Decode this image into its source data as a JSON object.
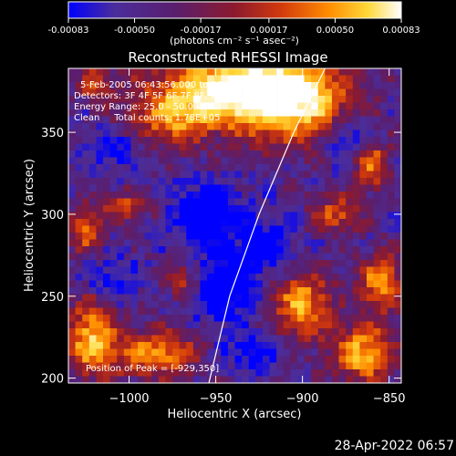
{
  "colorbar": {
    "ticks": [
      "-0.00083",
      "-0.00050",
      "-0.00017",
      "0.00017",
      "0.00050",
      "0.00083"
    ],
    "unit_label": "(photons cm⁻² s⁻¹ asec⁻²)",
    "range": [
      -0.00083,
      0.00083
    ]
  },
  "plot": {
    "title": "Reconstructed RHESSI Image",
    "info_lines": [
      "5-Feb-2005 06:43:56.000 to 06:45:08.000",
      "Detectors: 3F 4F 5F 6F 7F 8F, Att 0",
      "Energy Range: 25.0 - 50.0 keV",
      "Clean     Total counts: 1.78E+05"
    ],
    "peak_text": "Position of Peak = [-929,350]"
  },
  "footer": {
    "timestamp": "28-Apr-2022 06:57"
  },
  "chart_data": {
    "type": "heatmap",
    "title": "Reconstructed RHESSI Image",
    "xlabel": "Heliocentric X (arcsec)",
    "ylabel": "Heliocentric Y (arcsec)",
    "xlim": [
      -1035,
      -843
    ],
    "ylim": [
      197,
      389
    ],
    "x_ticks": [
      -1000,
      -950,
      -900,
      -850
    ],
    "y_ticks": [
      200,
      250,
      300,
      350
    ],
    "x_tick_labels": [
      "−1000",
      "−950",
      "−900",
      "−850"
    ],
    "y_tick_labels": [
      "200",
      "250",
      "300",
      "350"
    ],
    "peak": [
      -929,
      350
    ],
    "limb_curve": [
      [
        -954,
        197
      ],
      [
        -942,
        250
      ],
      [
        -925,
        300
      ],
      [
        -905,
        350
      ],
      [
        -887,
        389
      ]
    ],
    "colormap": [
      "#0000ff",
      "#4b2d9b",
      "#5a1e6e",
      "#8c1a2e",
      "#d23a0c",
      "#ff8c00",
      "#ffd93a",
      "#ffffff"
    ],
    "blobs": [
      {
        "x": -945,
        "y": 375,
        "sx": 30,
        "sy": 14,
        "a": 1.0
      },
      {
        "x": -905,
        "y": 370,
        "sx": 22,
        "sy": 18,
        "a": 0.85
      },
      {
        "x": -975,
        "y": 355,
        "sx": 16,
        "sy": 10,
        "a": 0.45
      },
      {
        "x": -1020,
        "y": 380,
        "sx": 8,
        "sy": 8,
        "a": 0.35
      },
      {
        "x": -1022,
        "y": 225,
        "sx": 10,
        "sy": 16,
        "a": 0.75
      },
      {
        "x": -985,
        "y": 215,
        "sx": 18,
        "sy": 10,
        "a": 0.65
      },
      {
        "x": -900,
        "y": 245,
        "sx": 12,
        "sy": 14,
        "a": 0.7
      },
      {
        "x": -865,
        "y": 215,
        "sx": 12,
        "sy": 12,
        "a": 0.75
      },
      {
        "x": -855,
        "y": 258,
        "sx": 8,
        "sy": 12,
        "a": 0.7
      },
      {
        "x": -880,
        "y": 300,
        "sx": 10,
        "sy": 8,
        "a": 0.5
      },
      {
        "x": -860,
        "y": 330,
        "sx": 7,
        "sy": 10,
        "a": 0.6
      },
      {
        "x": -1025,
        "y": 290,
        "sx": 8,
        "sy": 10,
        "a": 0.5
      },
      {
        "x": -1000,
        "y": 305,
        "sx": 10,
        "sy": 6,
        "a": 0.45
      },
      {
        "x": -970,
        "y": 260,
        "sx": 7,
        "sy": 7,
        "a": 0.4
      },
      {
        "x": -955,
        "y": 300,
        "sx": 14,
        "sy": 12,
        "a": -0.5
      },
      {
        "x": -945,
        "y": 255,
        "sx": 12,
        "sy": 16,
        "a": -0.45
      },
      {
        "x": -1010,
        "y": 260,
        "sx": 10,
        "sy": 10,
        "a": -0.3
      },
      {
        "x": -920,
        "y": 280,
        "sx": 10,
        "sy": 12,
        "a": -0.35
      },
      {
        "x": -875,
        "y": 345,
        "sx": 10,
        "sy": 10,
        "a": -0.35
      },
      {
        "x": -1010,
        "y": 340,
        "sx": 10,
        "sy": 8,
        "a": -0.3
      },
      {
        "x": -930,
        "y": 215,
        "sx": 12,
        "sy": 8,
        "a": -0.3
      }
    ]
  }
}
